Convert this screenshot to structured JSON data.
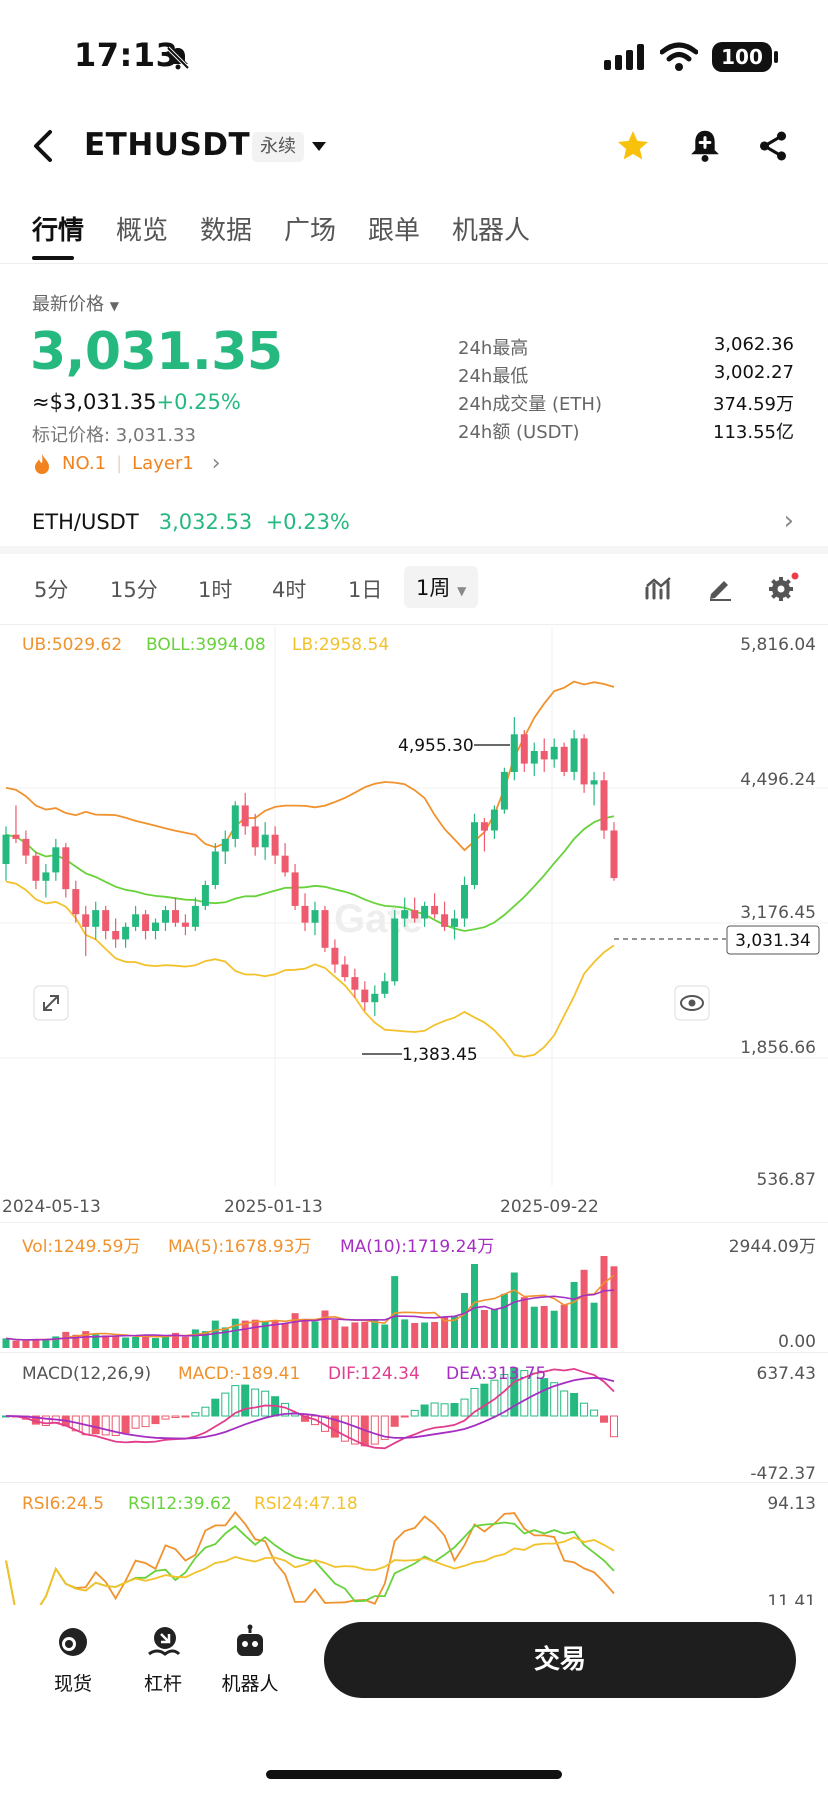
{
  "status": {
    "time": "17:13",
    "battery": "100"
  },
  "header": {
    "symbol": "ETHUSDT",
    "contract_tag": "永续"
  },
  "tabs": [
    "行情",
    "概览",
    "数据",
    "广场",
    "跟单",
    "机器人"
  ],
  "ticker": {
    "latest_label": "最新价格",
    "price": "3,031.35",
    "usd_price": "≈$3,031.35",
    "change": "+0.25%",
    "mark_price": "标记价格: 3,031.33",
    "rank": "NO.1",
    "category": "Layer1",
    "stats": [
      {
        "label": "24h最高",
        "value": "3,062.36"
      },
      {
        "label": "24h最低",
        "value": "3,002.27"
      },
      {
        "label": "24h成交量 (ETH)",
        "value": "374.59万"
      },
      {
        "label": "24h额 (USDT)",
        "value": "113.55亿"
      }
    ]
  },
  "spot": {
    "pair": "ETH/USDT",
    "price": "3,032.53",
    "change": "+0.23%"
  },
  "timeframes": [
    "5分",
    "15分",
    "1时",
    "4时",
    "1日"
  ],
  "timeframe_selected": "1周",
  "main_chart": {
    "indicators": {
      "ub": "UB:5029.62",
      "boll": "BOLL:3994.08",
      "lb": "LB:2958.54"
    },
    "y_labels": [
      "5,816.04",
      "4,496.24",
      "3,176.45",
      "1,856.66",
      "536.87"
    ],
    "current_price": "3,031.34",
    "high_marker": "4,955.30",
    "low_marker": "1,383.45",
    "x_labels": [
      "2024-05-13",
      "2025-01-13",
      "2025-09-22"
    ],
    "watermark": "Gate"
  },
  "volume": {
    "vol": "Vol:1249.59万",
    "ma5": "MA(5):1678.93万",
    "ma10": "MA(10):1719.24万",
    "y_top": "2944.09万",
    "y_bottom": "0.00"
  },
  "macd": {
    "title": "MACD(12,26,9)",
    "macd": "MACD:-189.41",
    "dif": "DIF:124.34",
    "dea": "DEA:313.75",
    "y_top": "637.43",
    "y_bottom": "-472.37"
  },
  "rsi": {
    "rsi6": "RSI6:24.5",
    "rsi12": "RSI12:39.62",
    "rsi24": "RSI24:47.18",
    "y_top": "94.13",
    "y_bottom": "11.41"
  },
  "bottom_nav": {
    "spot": "现货",
    "margin": "杠杆",
    "bot": "机器人",
    "trade": "交易"
  },
  "colors": {
    "up": "#25b980",
    "down": "#ee5a6e",
    "ub": "#f0922d",
    "boll": "#67d23a",
    "lb": "#f3c22b"
  },
  "chart_data": {
    "type": "candlestick",
    "interval": "1周",
    "x_range": [
      "2024-05-13",
      "2025-09-22"
    ],
    "ylim": [
      536.87,
      5816.04
    ],
    "ohlc": [
      [
        3200,
        3650,
        3000,
        3550
      ],
      [
        3550,
        3900,
        3450,
        3500
      ],
      [
        3500,
        3600,
        3200,
        3300
      ],
      [
        3300,
        3350,
        2900,
        3000
      ],
      [
        3000,
        3200,
        2800,
        3100
      ],
      [
        3100,
        3500,
        3000,
        3400
      ],
      [
        3400,
        3450,
        2800,
        2900
      ],
      [
        2900,
        3000,
        2500,
        2600
      ],
      [
        2600,
        2700,
        2100,
        2450
      ],
      [
        2450,
        2750,
        2300,
        2650
      ],
      [
        2650,
        2700,
        2300,
        2400
      ],
      [
        2400,
        2550,
        2200,
        2300
      ],
      [
        2300,
        2500,
        2200,
        2450
      ],
      [
        2450,
        2700,
        2400,
        2600
      ],
      [
        2600,
        2650,
        2300,
        2400
      ],
      [
        2400,
        2550,
        2300,
        2500
      ],
      [
        2500,
        2700,
        2400,
        2650
      ],
      [
        2650,
        2800,
        2450,
        2500
      ],
      [
        2500,
        2600,
        2350,
        2450
      ],
      [
        2450,
        2800,
        2400,
        2700
      ],
      [
        2700,
        3000,
        2650,
        2950
      ],
      [
        2950,
        3450,
        2900,
        3350
      ],
      [
        3350,
        3600,
        3200,
        3500
      ],
      [
        3500,
        3950,
        3400,
        3900
      ],
      [
        3900,
        4050,
        3550,
        3650
      ],
      [
        3650,
        3800,
        3300,
        3400
      ],
      [
        3400,
        3700,
        3250,
        3550
      ],
      [
        3550,
        3650,
        3200,
        3300
      ],
      [
        3300,
        3450,
        3050,
        3100
      ],
      [
        3100,
        3200,
        2650,
        2700
      ],
      [
        2700,
        2850,
        2400,
        2500
      ],
      [
        2500,
        2750,
        2350,
        2650
      ],
      [
        2650,
        2700,
        2150,
        2200
      ],
      [
        2200,
        2300,
        1900,
        2000
      ],
      [
        2000,
        2100,
        1800,
        1850
      ],
      [
        1850,
        1950,
        1600,
        1700
      ],
      [
        1700,
        1800,
        1450,
        1550
      ],
      [
        1550,
        1750,
        1383,
        1650
      ],
      [
        1650,
        1900,
        1600,
        1800
      ],
      [
        1800,
        2650,
        1750,
        2550
      ],
      [
        2550,
        2800,
        2450,
        2650
      ],
      [
        2650,
        2800,
        2500,
        2550
      ],
      [
        2550,
        2750,
        2450,
        2700
      ],
      [
        2700,
        2850,
        2550,
        2600
      ],
      [
        2600,
        2750,
        2400,
        2450
      ],
      [
        2450,
        2650,
        2300,
        2550
      ],
      [
        2550,
        3050,
        2450,
        2950
      ],
      [
        2950,
        3800,
        2900,
        3700
      ],
      [
        3700,
        3750,
        3350,
        3600
      ],
      [
        3600,
        3900,
        3500,
        3850
      ],
      [
        3850,
        4350,
        3800,
        4300
      ],
      [
        4300,
        4955,
        4200,
        4750
      ],
      [
        4750,
        4800,
        4300,
        4400
      ],
      [
        4400,
        4650,
        4250,
        4550
      ],
      [
        4550,
        4700,
        4300,
        4450
      ],
      [
        4450,
        4700,
        4350,
        4600
      ],
      [
        4600,
        4650,
        4250,
        4300
      ],
      [
        4300,
        4800,
        4200,
        4700
      ],
      [
        4700,
        4750,
        4050,
        4150
      ],
      [
        4150,
        4300,
        3900,
        4200
      ],
      [
        4200,
        4300,
        3500,
        3600
      ],
      [
        3600,
        3700,
        3000,
        3031
      ]
    ]
  }
}
